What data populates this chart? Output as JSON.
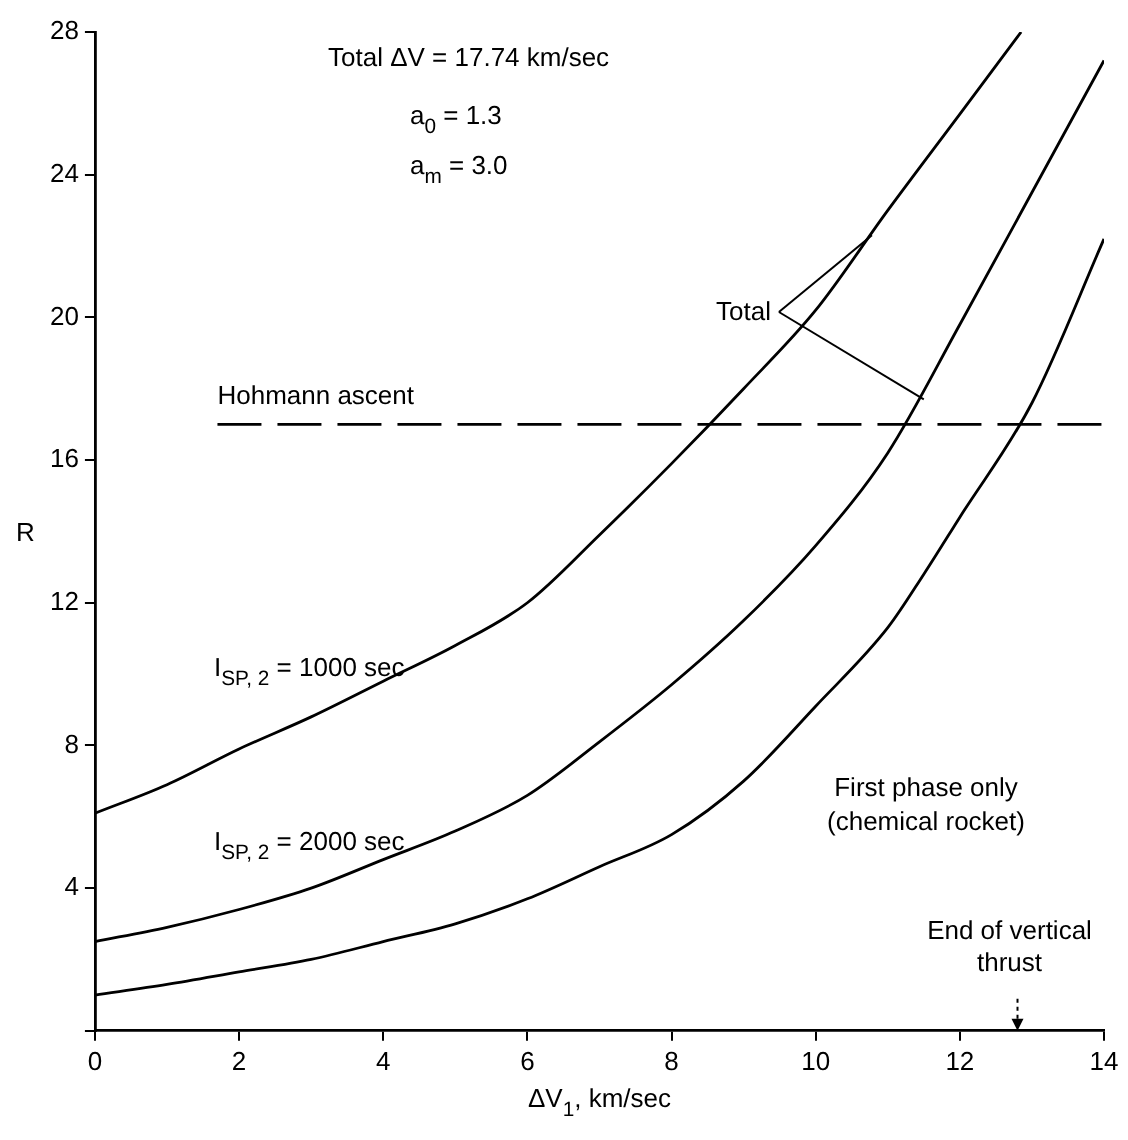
{
  "chart_data": {
    "type": "line",
    "xlabel": "ΔV$_{1}$, km/sec",
    "ylabel": "R",
    "xlim": [
      0,
      14
    ],
    "xticks": [
      0,
      2,
      4,
      6,
      8,
      10,
      12,
      14
    ],
    "ylim": [
      0,
      28
    ],
    "yticks": [
      {
        "value": 0,
        "label": null
      },
      4,
      8,
      12,
      16,
      20,
      24,
      28
    ],
    "grid": false,
    "legend": false,
    "marker": "none",
    "series": [
      {
        "name": "I$_{SP, 2}$ = 1000 sec",
        "color": "#000000",
        "line_style": "solid",
        "x": [
          0,
          1,
          2,
          3,
          4,
          5,
          6,
          7,
          8,
          9,
          10,
          11,
          12,
          12.85
        ],
        "values": [
          6.1,
          6.9,
          7.9,
          8.8,
          9.8,
          10.8,
          12.0,
          13.9,
          15.9,
          18.0,
          20.2,
          23.0,
          25.7,
          28
        ]
      },
      {
        "name": "I$_{SP, 2}$ = 2000 sec",
        "color": "#000000",
        "line_style": "solid",
        "x": [
          0,
          1,
          2,
          3,
          4,
          5,
          6,
          7,
          8,
          9,
          10,
          11,
          12,
          13,
          14
        ],
        "values": [
          2.5,
          2.9,
          3.4,
          4.0,
          4.8,
          5.6,
          6.6,
          8.1,
          9.7,
          11.5,
          13.6,
          16.2,
          19.8,
          23.5,
          27.2
        ]
      },
      {
        "name": "First phase only (chemical rocket)",
        "color": "#000000",
        "line_style": "solid",
        "x": [
          0,
          1,
          2,
          3,
          4,
          5,
          6,
          7,
          8,
          9,
          10,
          11,
          11.5,
          12,
          13,
          14
        ],
        "values": [
          1.0,
          1.3,
          1.65,
          2.0,
          2.5,
          3.0,
          3.7,
          4.6,
          5.5,
          7.0,
          9.1,
          11.3,
          12.8,
          14.4,
          17.6,
          22.2
        ]
      },
      {
        "name": "Hohmann ascent",
        "color": "#000000",
        "line_style": "dashed",
        "x": [
          1.7,
          14
        ],
        "values": [
          17,
          17
        ]
      }
    ],
    "annotations": [
      "Total ΔV = 17.74 km/sec",
      "a$_{0}$ = 1.3",
      "a$_{m}$ = 3.0",
      {
        "text": "Total",
        "x": 10.78,
        "y": 22.3
      },
      "End of vertical thrust"
    ]
  }
}
